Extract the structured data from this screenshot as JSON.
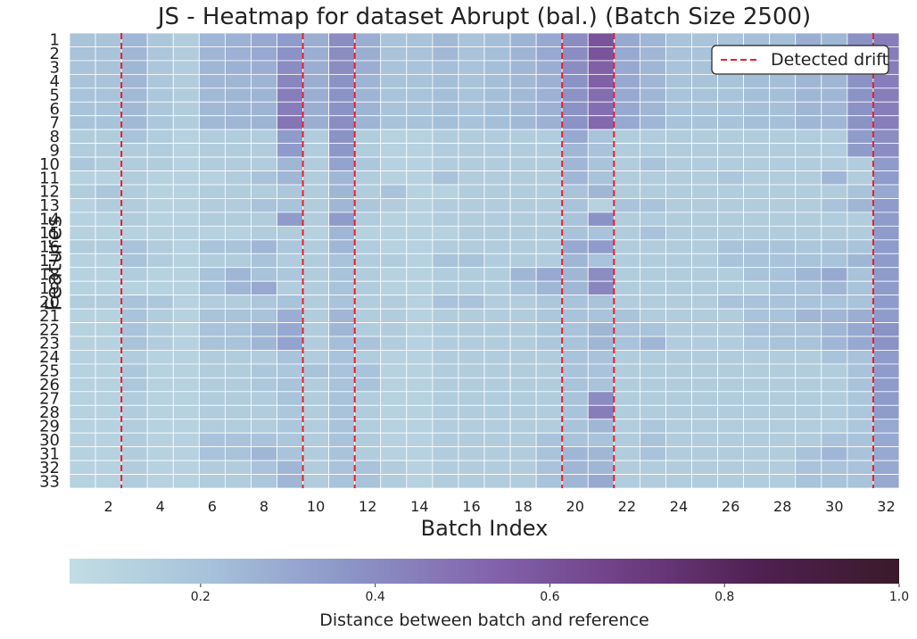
{
  "chart_data": {
    "type": "heatmap",
    "title": "JS - Heatmap for dataset Abrupt (bal.) (Batch Size 2500)",
    "xlabel": "Batch Index",
    "ylabel": "Features",
    "x_tick_labels": [
      "2",
      "4",
      "6",
      "8",
      "10",
      "12",
      "14",
      "16",
      "18",
      "20",
      "22",
      "24",
      "26",
      "28",
      "30",
      "32"
    ],
    "x_ticks": [
      2,
      4,
      6,
      8,
      10,
      12,
      14,
      16,
      18,
      20,
      22,
      24,
      26,
      28,
      30,
      32
    ],
    "batches": [
      1,
      2,
      3,
      4,
      5,
      6,
      7,
      8,
      9,
      10,
      11,
      12,
      13,
      14,
      15,
      16,
      17,
      18,
      19,
      20,
      21,
      22,
      23,
      24,
      25,
      26,
      27,
      28,
      29,
      30,
      31,
      32
    ],
    "features": [
      "1",
      "2",
      "3",
      "4",
      "5",
      "6",
      "7",
      "8",
      "9",
      "10",
      "11",
      "12",
      "13",
      "14",
      "15",
      "16",
      "17",
      "18",
      "19",
      "20",
      "21",
      "22",
      "23",
      "24",
      "25",
      "26",
      "27",
      "28",
      "29",
      "30",
      "31",
      "32",
      "33"
    ],
    "detected_drift_batches": [
      2.5,
      9.5,
      11.5,
      19.5,
      21.5,
      31.5
    ],
    "legend": {
      "label": "Detected drift",
      "position": "top-right"
    },
    "colorbar": {
      "label": "Distance between batch and reference",
      "range": [
        0.05,
        1.0
      ],
      "tick_labels": [
        "0.2",
        "0.4",
        "0.6",
        "0.8",
        "1.0"
      ],
      "ticks": [
        0.2,
        0.4,
        0.6,
        0.8,
        1.0
      ],
      "colors": [
        "#c2dde3",
        "#a7c2da",
        "#8c96c8",
        "#8366ad",
        "#6f3f86",
        "#4f2050",
        "#3a1a2a"
      ]
    },
    "values": [
      [
        0.2,
        0.2,
        0.25,
        0.18,
        0.15,
        0.25,
        0.27,
        0.3,
        0.35,
        0.28,
        0.4,
        0.28,
        0.2,
        0.2,
        0.24,
        0.2,
        0.22,
        0.26,
        0.3,
        0.4,
        0.6,
        0.3,
        0.25,
        0.2,
        0.2,
        0.2,
        0.22,
        0.22,
        0.28,
        0.25,
        0.38,
        0.45
      ],
      [
        0.2,
        0.2,
        0.25,
        0.18,
        0.15,
        0.25,
        0.27,
        0.3,
        0.38,
        0.28,
        0.4,
        0.28,
        0.2,
        0.2,
        0.24,
        0.2,
        0.22,
        0.26,
        0.3,
        0.4,
        0.6,
        0.3,
        0.25,
        0.2,
        0.2,
        0.2,
        0.22,
        0.22,
        0.28,
        0.25,
        0.38,
        0.45
      ],
      [
        0.2,
        0.2,
        0.25,
        0.18,
        0.15,
        0.25,
        0.27,
        0.28,
        0.4,
        0.28,
        0.4,
        0.28,
        0.2,
        0.2,
        0.22,
        0.2,
        0.22,
        0.25,
        0.28,
        0.4,
        0.55,
        0.3,
        0.25,
        0.2,
        0.2,
        0.2,
        0.22,
        0.22,
        0.25,
        0.25,
        0.38,
        0.45
      ],
      [
        0.2,
        0.2,
        0.25,
        0.18,
        0.15,
        0.25,
        0.25,
        0.26,
        0.42,
        0.28,
        0.38,
        0.26,
        0.2,
        0.2,
        0.22,
        0.2,
        0.22,
        0.24,
        0.27,
        0.38,
        0.55,
        0.3,
        0.25,
        0.2,
        0.2,
        0.2,
        0.22,
        0.22,
        0.25,
        0.25,
        0.38,
        0.45
      ],
      [
        0.2,
        0.2,
        0.24,
        0.18,
        0.15,
        0.24,
        0.25,
        0.26,
        0.45,
        0.28,
        0.38,
        0.26,
        0.2,
        0.2,
        0.22,
        0.2,
        0.22,
        0.24,
        0.27,
        0.38,
        0.5,
        0.3,
        0.25,
        0.2,
        0.2,
        0.2,
        0.22,
        0.22,
        0.25,
        0.25,
        0.38,
        0.45
      ],
      [
        0.2,
        0.2,
        0.24,
        0.18,
        0.15,
        0.24,
        0.25,
        0.26,
        0.45,
        0.28,
        0.38,
        0.26,
        0.2,
        0.2,
        0.22,
        0.2,
        0.22,
        0.24,
        0.27,
        0.38,
        0.5,
        0.3,
        0.25,
        0.2,
        0.2,
        0.2,
        0.22,
        0.22,
        0.25,
        0.25,
        0.38,
        0.45
      ],
      [
        0.2,
        0.2,
        0.24,
        0.18,
        0.15,
        0.24,
        0.25,
        0.26,
        0.48,
        0.28,
        0.4,
        0.26,
        0.2,
        0.2,
        0.22,
        0.2,
        0.22,
        0.24,
        0.27,
        0.38,
        0.52,
        0.3,
        0.25,
        0.2,
        0.2,
        0.2,
        0.22,
        0.22,
        0.25,
        0.25,
        0.38,
        0.45
      ],
      [
        0.15,
        0.15,
        0.2,
        0.15,
        0.12,
        0.15,
        0.15,
        0.15,
        0.35,
        0.15,
        0.38,
        0.15,
        0.12,
        0.12,
        0.15,
        0.15,
        0.15,
        0.15,
        0.15,
        0.3,
        0.2,
        0.15,
        0.15,
        0.15,
        0.15,
        0.15,
        0.15,
        0.15,
        0.15,
        0.15,
        0.35,
        0.4
      ],
      [
        0.15,
        0.15,
        0.15,
        0.15,
        0.12,
        0.15,
        0.15,
        0.15,
        0.35,
        0.15,
        0.36,
        0.15,
        0.12,
        0.12,
        0.15,
        0.15,
        0.15,
        0.15,
        0.15,
        0.25,
        0.2,
        0.15,
        0.15,
        0.15,
        0.15,
        0.15,
        0.15,
        0.15,
        0.15,
        0.15,
        0.35,
        0.4
      ],
      [
        0.18,
        0.15,
        0.15,
        0.15,
        0.12,
        0.15,
        0.15,
        0.15,
        0.25,
        0.15,
        0.32,
        0.18,
        0.12,
        0.12,
        0.15,
        0.15,
        0.15,
        0.15,
        0.15,
        0.25,
        0.2,
        0.15,
        0.2,
        0.15,
        0.15,
        0.15,
        0.15,
        0.15,
        0.15,
        0.15,
        0.15,
        0.35
      ],
      [
        0.12,
        0.12,
        0.15,
        0.12,
        0.12,
        0.12,
        0.15,
        0.2,
        0.25,
        0.15,
        0.25,
        0.15,
        0.12,
        0.12,
        0.2,
        0.15,
        0.15,
        0.15,
        0.15,
        0.25,
        0.2,
        0.15,
        0.15,
        0.15,
        0.15,
        0.18,
        0.15,
        0.15,
        0.15,
        0.25,
        0.15,
        0.35
      ],
      [
        0.15,
        0.18,
        0.15,
        0.12,
        0.12,
        0.15,
        0.15,
        0.15,
        0.18,
        0.15,
        0.25,
        0.15,
        0.2,
        0.12,
        0.12,
        0.15,
        0.15,
        0.15,
        0.15,
        0.2,
        0.25,
        0.15,
        0.15,
        0.15,
        0.15,
        0.15,
        0.15,
        0.15,
        0.15,
        0.15,
        0.2,
        0.3
      ],
      [
        0.12,
        0.15,
        0.15,
        0.12,
        0.12,
        0.15,
        0.15,
        0.2,
        0.2,
        0.15,
        0.25,
        0.18,
        0.15,
        0.12,
        0.15,
        0.15,
        0.15,
        0.15,
        0.15,
        0.2,
        0.12,
        0.2,
        0.2,
        0.15,
        0.15,
        0.15,
        0.15,
        0.15,
        0.15,
        0.2,
        0.25,
        0.35
      ],
      [
        0.12,
        0.12,
        0.15,
        0.12,
        0.12,
        0.15,
        0.15,
        0.15,
        0.35,
        0.15,
        0.35,
        0.15,
        0.12,
        0.12,
        0.15,
        0.15,
        0.15,
        0.15,
        0.15,
        0.2,
        0.38,
        0.15,
        0.15,
        0.15,
        0.15,
        0.15,
        0.15,
        0.15,
        0.15,
        0.15,
        0.15,
        0.35
      ],
      [
        0.12,
        0.12,
        0.12,
        0.12,
        0.12,
        0.12,
        0.12,
        0.15,
        0.15,
        0.12,
        0.25,
        0.12,
        0.12,
        0.12,
        0.12,
        0.15,
        0.15,
        0.15,
        0.15,
        0.2,
        0.2,
        0.15,
        0.2,
        0.15,
        0.15,
        0.15,
        0.15,
        0.15,
        0.15,
        0.15,
        0.15,
        0.35
      ],
      [
        0.15,
        0.15,
        0.2,
        0.15,
        0.12,
        0.2,
        0.2,
        0.25,
        0.18,
        0.15,
        0.25,
        0.15,
        0.12,
        0.12,
        0.15,
        0.15,
        0.15,
        0.15,
        0.15,
        0.3,
        0.35,
        0.15,
        0.15,
        0.15,
        0.15,
        0.2,
        0.2,
        0.2,
        0.18,
        0.2,
        0.2,
        0.35
      ],
      [
        0.12,
        0.12,
        0.2,
        0.15,
        0.12,
        0.15,
        0.15,
        0.2,
        0.15,
        0.15,
        0.2,
        0.15,
        0.15,
        0.12,
        0.2,
        0.2,
        0.15,
        0.15,
        0.15,
        0.25,
        0.2,
        0.15,
        0.15,
        0.15,
        0.15,
        0.2,
        0.2,
        0.2,
        0.2,
        0.2,
        0.25,
        0.35
      ],
      [
        0.12,
        0.12,
        0.15,
        0.12,
        0.12,
        0.2,
        0.25,
        0.2,
        0.18,
        0.15,
        0.2,
        0.15,
        0.12,
        0.12,
        0.15,
        0.15,
        0.15,
        0.25,
        0.3,
        0.25,
        0.4,
        0.15,
        0.15,
        0.15,
        0.15,
        0.15,
        0.2,
        0.2,
        0.25,
        0.3,
        0.2,
        0.35
      ],
      [
        0.12,
        0.12,
        0.12,
        0.12,
        0.12,
        0.2,
        0.25,
        0.3,
        0.15,
        0.15,
        0.2,
        0.15,
        0.12,
        0.12,
        0.15,
        0.15,
        0.15,
        0.2,
        0.25,
        0.25,
        0.42,
        0.15,
        0.15,
        0.15,
        0.15,
        0.15,
        0.15,
        0.2,
        0.2,
        0.25,
        0.2,
        0.35
      ],
      [
        0.15,
        0.15,
        0.2,
        0.18,
        0.12,
        0.15,
        0.15,
        0.18,
        0.2,
        0.15,
        0.2,
        0.15,
        0.15,
        0.12,
        0.2,
        0.2,
        0.15,
        0.15,
        0.18,
        0.2,
        0.2,
        0.15,
        0.15,
        0.15,
        0.15,
        0.2,
        0.2,
        0.2,
        0.2,
        0.2,
        0.2,
        0.35
      ],
      [
        0.12,
        0.12,
        0.2,
        0.15,
        0.12,
        0.2,
        0.2,
        0.2,
        0.28,
        0.15,
        0.25,
        0.15,
        0.15,
        0.12,
        0.15,
        0.15,
        0.15,
        0.15,
        0.18,
        0.2,
        0.2,
        0.2,
        0.15,
        0.15,
        0.15,
        0.15,
        0.2,
        0.2,
        0.25,
        0.25,
        0.28,
        0.35
      ],
      [
        0.12,
        0.12,
        0.2,
        0.15,
        0.12,
        0.2,
        0.2,
        0.25,
        0.3,
        0.15,
        0.25,
        0.15,
        0.15,
        0.12,
        0.15,
        0.15,
        0.15,
        0.15,
        0.18,
        0.2,
        0.25,
        0.2,
        0.2,
        0.15,
        0.15,
        0.15,
        0.2,
        0.2,
        0.2,
        0.25,
        0.3,
        0.38
      ],
      [
        0.12,
        0.12,
        0.2,
        0.15,
        0.12,
        0.2,
        0.2,
        0.25,
        0.32,
        0.15,
        0.22,
        0.2,
        0.15,
        0.12,
        0.15,
        0.15,
        0.15,
        0.15,
        0.18,
        0.2,
        0.25,
        0.2,
        0.25,
        0.15,
        0.15,
        0.15,
        0.18,
        0.2,
        0.2,
        0.25,
        0.3,
        0.38
      ],
      [
        0.12,
        0.12,
        0.15,
        0.12,
        0.12,
        0.15,
        0.15,
        0.15,
        0.2,
        0.15,
        0.2,
        0.15,
        0.12,
        0.12,
        0.15,
        0.15,
        0.15,
        0.15,
        0.15,
        0.2,
        0.2,
        0.15,
        0.15,
        0.15,
        0.15,
        0.15,
        0.15,
        0.15,
        0.15,
        0.2,
        0.2,
        0.35
      ],
      [
        0.12,
        0.12,
        0.18,
        0.12,
        0.12,
        0.15,
        0.15,
        0.18,
        0.18,
        0.2,
        0.2,
        0.2,
        0.12,
        0.12,
        0.15,
        0.15,
        0.15,
        0.15,
        0.15,
        0.2,
        0.2,
        0.15,
        0.15,
        0.15,
        0.15,
        0.15,
        0.15,
        0.15,
        0.15,
        0.15,
        0.2,
        0.35
      ],
      [
        0.12,
        0.12,
        0.18,
        0.12,
        0.12,
        0.15,
        0.15,
        0.18,
        0.2,
        0.15,
        0.2,
        0.2,
        0.12,
        0.12,
        0.15,
        0.15,
        0.15,
        0.15,
        0.15,
        0.2,
        0.2,
        0.15,
        0.15,
        0.15,
        0.15,
        0.15,
        0.15,
        0.15,
        0.15,
        0.15,
        0.2,
        0.35
      ],
      [
        0.12,
        0.12,
        0.15,
        0.12,
        0.12,
        0.15,
        0.15,
        0.15,
        0.2,
        0.15,
        0.2,
        0.15,
        0.12,
        0.12,
        0.15,
        0.15,
        0.15,
        0.15,
        0.15,
        0.2,
        0.4,
        0.15,
        0.15,
        0.15,
        0.15,
        0.15,
        0.15,
        0.15,
        0.15,
        0.15,
        0.18,
        0.35
      ],
      [
        0.12,
        0.12,
        0.15,
        0.12,
        0.12,
        0.15,
        0.15,
        0.15,
        0.18,
        0.15,
        0.2,
        0.15,
        0.12,
        0.12,
        0.15,
        0.15,
        0.15,
        0.15,
        0.15,
        0.2,
        0.45,
        0.15,
        0.15,
        0.15,
        0.15,
        0.15,
        0.15,
        0.15,
        0.15,
        0.15,
        0.18,
        0.35
      ],
      [
        0.12,
        0.12,
        0.15,
        0.12,
        0.12,
        0.15,
        0.15,
        0.15,
        0.18,
        0.15,
        0.2,
        0.15,
        0.12,
        0.12,
        0.15,
        0.15,
        0.15,
        0.15,
        0.15,
        0.2,
        0.25,
        0.15,
        0.18,
        0.15,
        0.15,
        0.15,
        0.15,
        0.15,
        0.15,
        0.15,
        0.18,
        0.3
      ],
      [
        0.12,
        0.12,
        0.15,
        0.12,
        0.12,
        0.2,
        0.2,
        0.2,
        0.18,
        0.15,
        0.2,
        0.15,
        0.12,
        0.12,
        0.15,
        0.15,
        0.15,
        0.15,
        0.2,
        0.2,
        0.2,
        0.15,
        0.2,
        0.15,
        0.15,
        0.15,
        0.15,
        0.15,
        0.15,
        0.2,
        0.2,
        0.3
      ],
      [
        0.12,
        0.12,
        0.15,
        0.12,
        0.12,
        0.2,
        0.2,
        0.25,
        0.2,
        0.15,
        0.2,
        0.15,
        0.12,
        0.12,
        0.15,
        0.15,
        0.15,
        0.15,
        0.2,
        0.25,
        0.25,
        0.15,
        0.2,
        0.15,
        0.15,
        0.15,
        0.15,
        0.15,
        0.2,
        0.25,
        0.2,
        0.3
      ],
      [
        0.12,
        0.12,
        0.15,
        0.12,
        0.12,
        0.15,
        0.15,
        0.2,
        0.25,
        0.15,
        0.2,
        0.2,
        0.15,
        0.12,
        0.15,
        0.15,
        0.15,
        0.15,
        0.2,
        0.25,
        0.25,
        0.15,
        0.15,
        0.15,
        0.15,
        0.15,
        0.15,
        0.15,
        0.2,
        0.2,
        0.2,
        0.3
      ],
      [
        0.12,
        0.12,
        0.15,
        0.12,
        0.12,
        0.15,
        0.15,
        0.18,
        0.25,
        0.15,
        0.2,
        0.2,
        0.15,
        0.12,
        0.15,
        0.15,
        0.15,
        0.15,
        0.2,
        0.25,
        0.3,
        0.15,
        0.15,
        0.15,
        0.15,
        0.15,
        0.15,
        0.15,
        0.2,
        0.2,
        0.2,
        0.3
      ]
    ]
  }
}
